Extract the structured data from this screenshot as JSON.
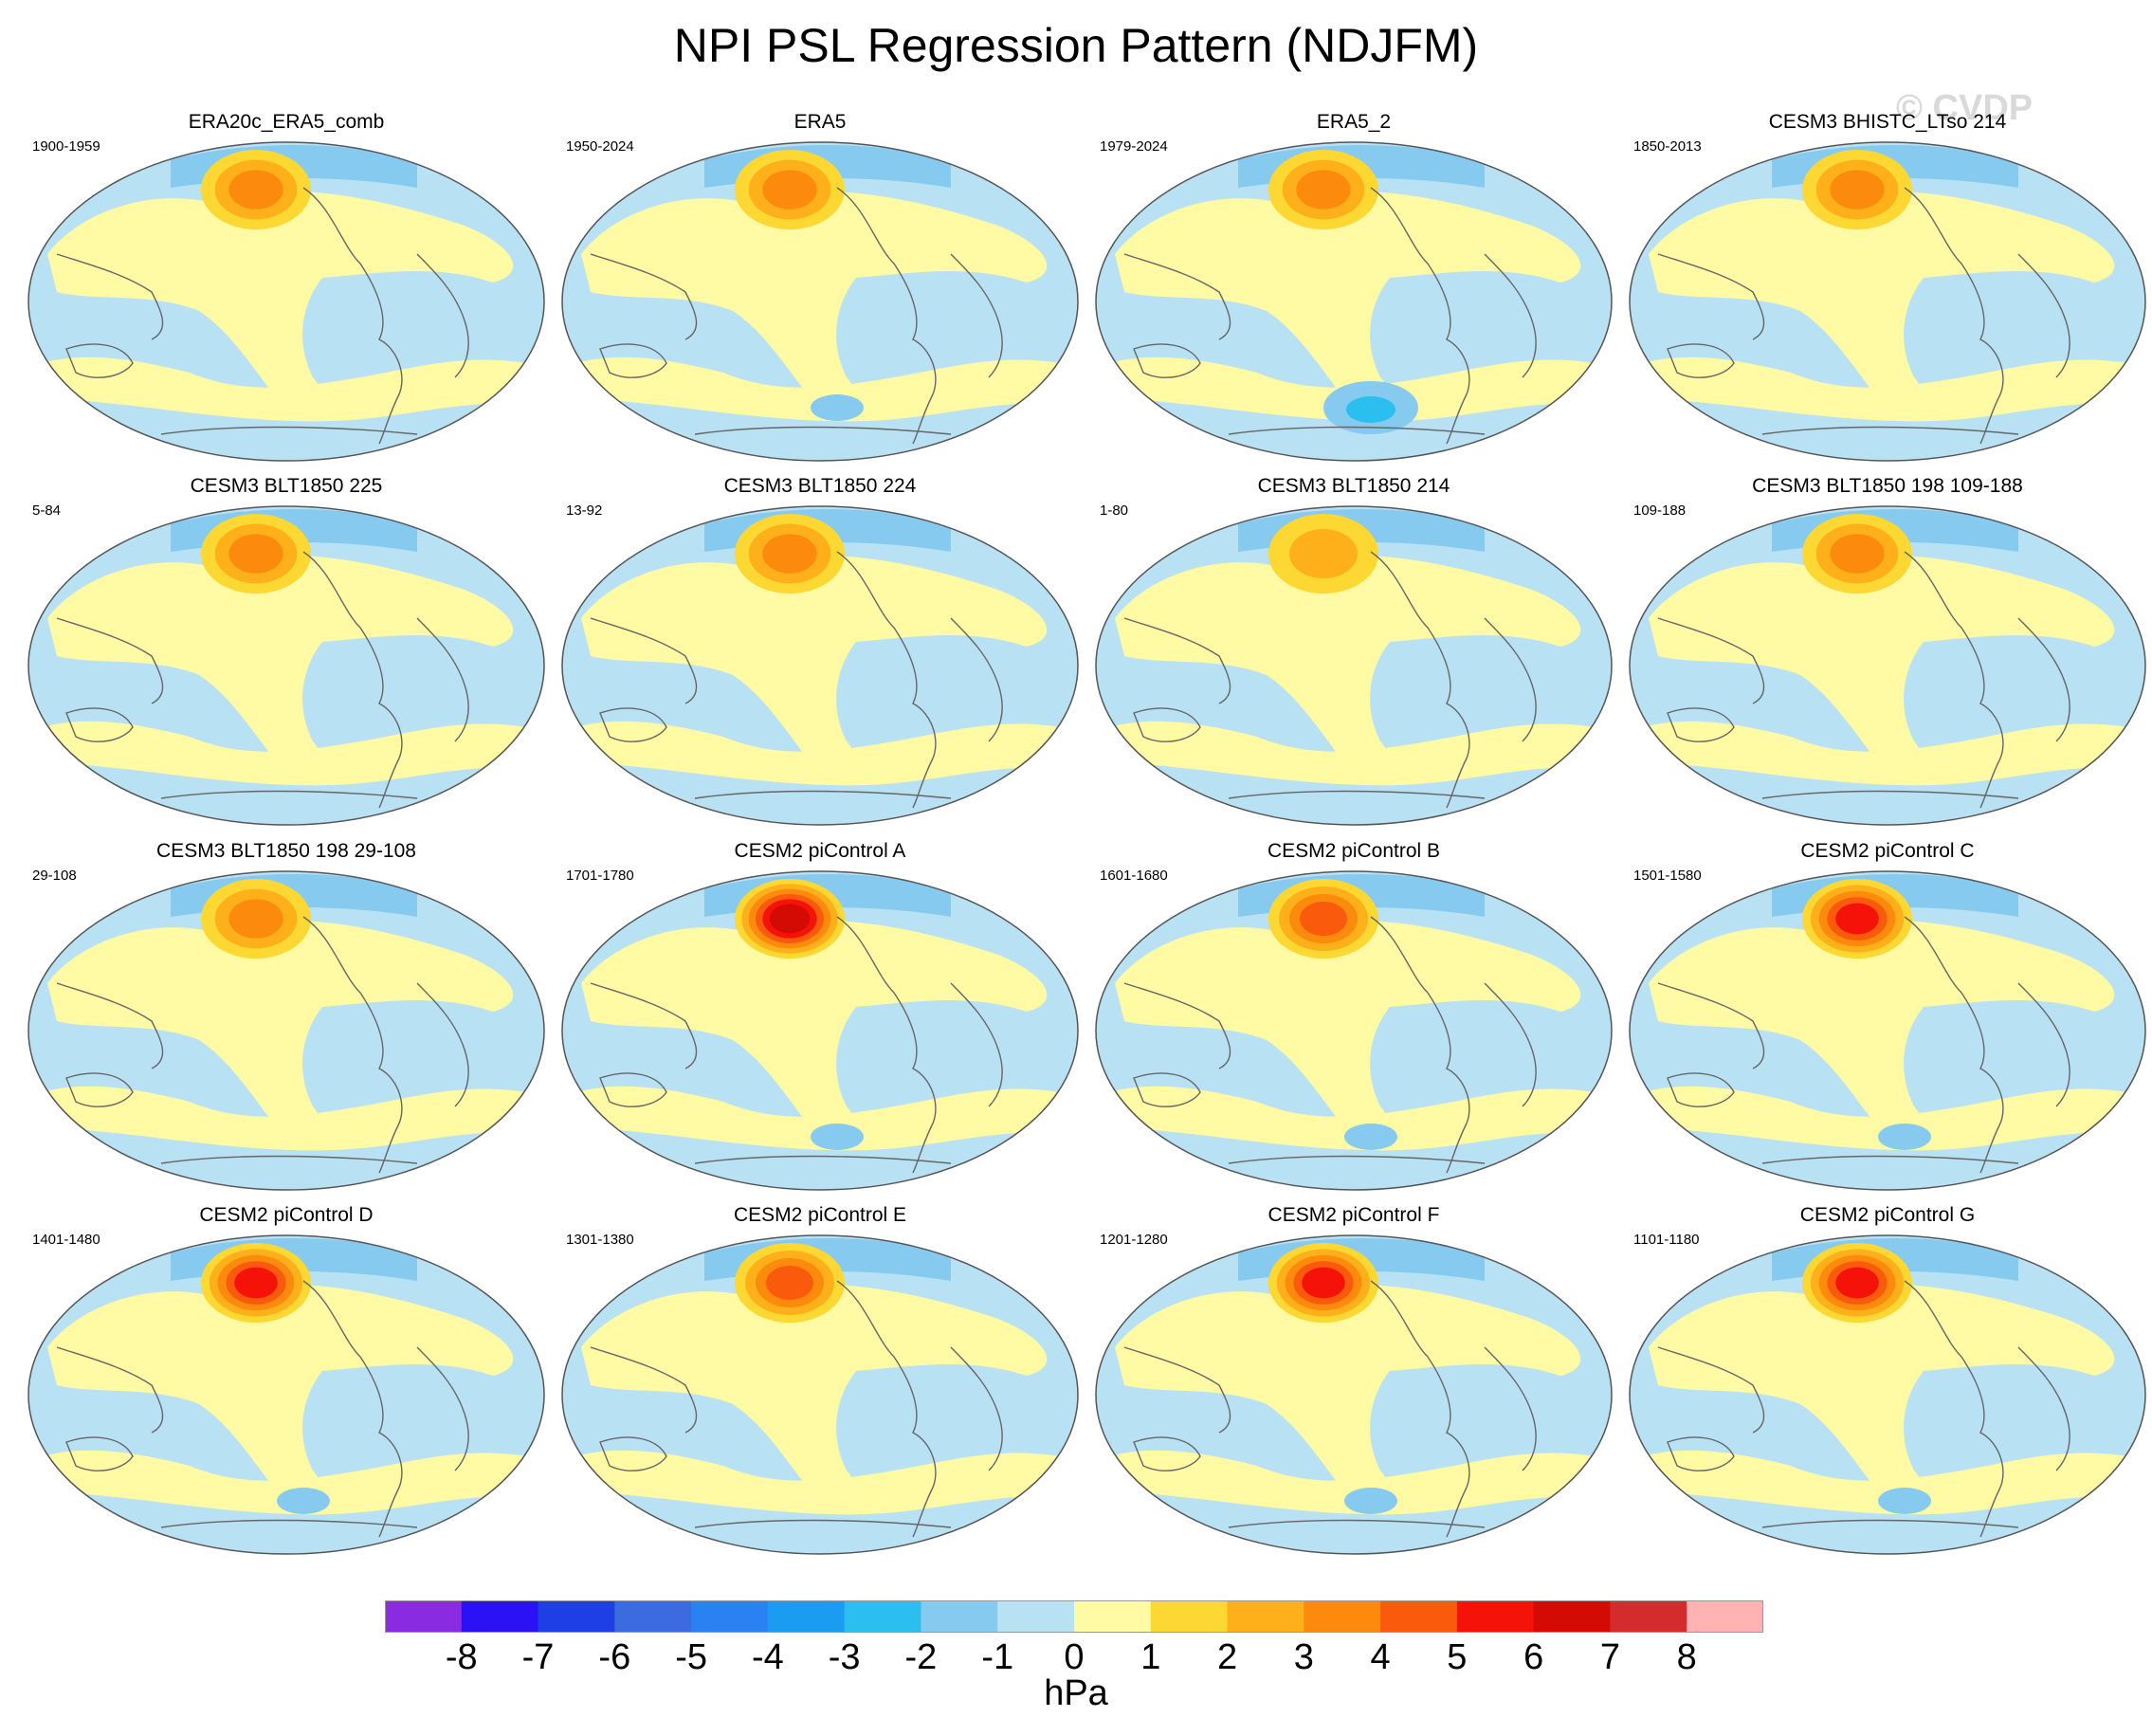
{
  "title": "NPI PSL Regression Pattern (NDJFM)",
  "watermark": "© CVDP",
  "panels": [
    {
      "title": "ERA20c_ERA5_comb",
      "years": "1900-1959",
      "southern_feature": "none",
      "high_strength": 3
    },
    {
      "title": "ERA5",
      "years": "1950-2024",
      "southern_feature": "weak",
      "high_strength": 3
    },
    {
      "title": "ERA5_2",
      "years": "1979-2024",
      "southern_feature": "strong",
      "high_strength": 3
    },
    {
      "title": "CESM3 BHISTC_LTso 214",
      "years": "1850-2013",
      "southern_feature": "none",
      "high_strength": 3
    },
    {
      "title": "CESM3 BLT1850 225",
      "years": "5-84",
      "southern_feature": "none",
      "high_strength": 3
    },
    {
      "title": "CESM3 BLT1850 224",
      "years": "13-92",
      "southern_feature": "none",
      "high_strength": 3
    },
    {
      "title": "CESM3 BLT1850 214",
      "years": "1-80",
      "southern_feature": "none",
      "high_strength": 2
    },
    {
      "title": "CESM3 BLT1850 198 109-188",
      "years": "109-188",
      "southern_feature": "none",
      "high_strength": 3
    },
    {
      "title": "CESM3 BLT1850 198 29-108",
      "years": "29-108",
      "southern_feature": "none",
      "high_strength": 3
    },
    {
      "title": "CESM2 piControl A",
      "years": "1701-1780",
      "southern_feature": "weak",
      "high_strength": 6
    },
    {
      "title": "CESM2 piControl B",
      "years": "1601-1680",
      "southern_feature": "weak",
      "high_strength": 4
    },
    {
      "title": "CESM2 piControl C",
      "years": "1501-1580",
      "southern_feature": "weak",
      "high_strength": 5
    },
    {
      "title": "CESM2 piControl D",
      "years": "1401-1480",
      "southern_feature": "weak",
      "high_strength": 5
    },
    {
      "title": "CESM2 piControl E",
      "years": "1301-1380",
      "southern_feature": "none",
      "high_strength": 4
    },
    {
      "title": "CESM2 piControl F",
      "years": "1201-1280",
      "southern_feature": "weak",
      "high_strength": 5
    },
    {
      "title": "CESM2 piControl G",
      "years": "1101-1180",
      "southern_feature": "weak",
      "high_strength": 5
    }
  ],
  "colorbar": {
    "units": "hPa",
    "tick_labels": [
      "-8",
      "-7",
      "-6",
      "-5",
      "-4",
      "-3",
      "-2",
      "-1",
      "0",
      "1",
      "2",
      "3",
      "4",
      "5",
      "6",
      "7",
      "8"
    ],
    "colors": [
      "#8a2be2",
      "#2a12f5",
      "#1f3fe6",
      "#3b6bde",
      "#2a82f2",
      "#1a9cf0",
      "#2bbff0",
      "#86caf0",
      "#b9e1f4",
      "#fffaa3",
      "#fdd832",
      "#fdb01a",
      "#fc8a0c",
      "#fa5a0c",
      "#f51208",
      "#d40b05",
      "#d42c2c",
      "#ffb3b3"
    ]
  },
  "map_colors": {
    "ocean_neutral": "#b9e1f4",
    "positive_1": "#fffaa3",
    "low_1": "#86caf0",
    "low_2": "#2bbff0",
    "outline": "#666666"
  }
}
